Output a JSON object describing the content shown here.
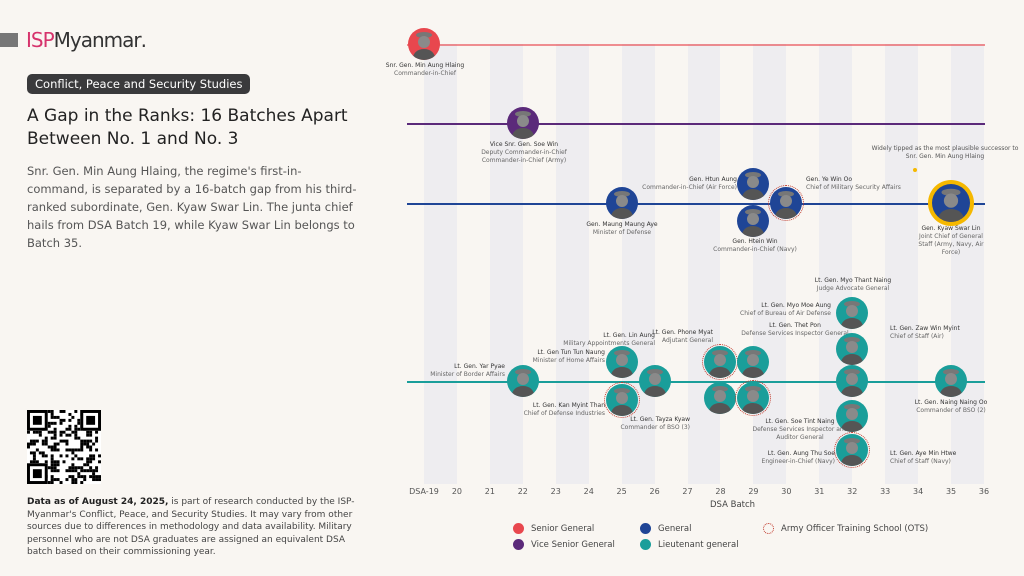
{
  "brand": {
    "isp": "ISP",
    "name": "Myanmar",
    "dot": "."
  },
  "tag": "Conflict, Peace and Security Studies",
  "title": "A Gap in the Ranks: 16 Batches Apart Between No. 1 and No. 3",
  "description": "Snr. Gen. Min Aung Hlaing, the regime's first-in-command, is separated by a 16-batch gap from his third-ranked subordinate, Gen. Kyaw Swar Lin. The junta chief hails from DSA Batch 19, while Kyaw Swar Lin belongs to Batch 35.",
  "note_bold": "Data as of August 24, 2025,",
  "note": " is part of research conducted by the ISP-Myanmar's Conflict, Peace, and Security Studies. It may vary from other sources due to differences in methodology and data availability. Military personnel who are not DSA graduates are assigned an equivalent DSA batch based on their commissioning year.",
  "chart_data": {
    "type": "scatter",
    "xlabel": "DSA Batch",
    "ticks": [
      "DSA-19",
      "20",
      "21",
      "22",
      "23",
      "24",
      "25",
      "26",
      "27",
      "28",
      "29",
      "30",
      "31",
      "32",
      "33",
      "34",
      "35",
      "36"
    ],
    "xlim": [
      19,
      36
    ],
    "ranks": [
      {
        "key": "senior",
        "name": "Senior General",
        "color": "#e8474e"
      },
      {
        "key": "vice",
        "name": "Vice Senior General",
        "color": "#5b2a7a"
      },
      {
        "key": "general",
        "name": "General",
        "color": "#1f4596"
      },
      {
        "key": "lt",
        "name": "Lieutenant general",
        "color": "#1a9e9a"
      }
    ],
    "ots_label": "Army Officer Training School (OTS)",
    "annotation": "Widely tipped as the most plausible successor to Snr. Gen. Min Aung Hlaing",
    "people": [
      {
        "name": "Snr. Gen. Min Aung Hlaing",
        "role": "Commander-in-Chief",
        "rank": "senior",
        "batch": 19,
        "ots": false
      },
      {
        "name": "Vice Snr. Gen. Soe Win",
        "role": "Deputy Commander-in-Chief Commander-in-Chief (Army)",
        "rank": "vice",
        "batch": 22,
        "ots": false
      },
      {
        "name": "Gen. Maung Maung Aye",
        "role": "Minister of Defense",
        "rank": "general",
        "batch": 25,
        "ots": false
      },
      {
        "name": "Gen. Htun Aung",
        "role": "Commander-in-Chief (Air Force)",
        "rank": "general",
        "batch": 29,
        "ots": false
      },
      {
        "name": "Gen. Htein Win",
        "role": "Commander-in-Chief (Navy)",
        "rank": "general",
        "batch": 29,
        "ots": false
      },
      {
        "name": "Gen. Ye Win Oo",
        "role": "Chief of Military Security Affairs",
        "rank": "general",
        "batch": 30,
        "ots": true
      },
      {
        "name": "Gen. Kyaw Swar Lin",
        "role": "Joint Chief of General Staff (Army, Navy, Air Force)",
        "rank": "general",
        "batch": 35,
        "ots": false,
        "highlight": true
      },
      {
        "name": "Lt. Gen. Yar Pyae",
        "role": "Minister of Border Affairs",
        "rank": "lt",
        "batch": 22,
        "ots": false
      },
      {
        "name": "Lt. Gen Tun Tun Naung",
        "role": "Minister of Home Affairs",
        "rank": "lt",
        "batch": 25,
        "ots": false
      },
      {
        "name": "Lt. Gen. Kan Myint Than",
        "role": "Chief of Defense Industries",
        "rank": "lt",
        "batch": 25,
        "ots": true
      },
      {
        "name": "Lt. Gen. Lin Aung",
        "role": "Military Appointments General",
        "rank": "lt",
        "batch": 26,
        "ots": false
      },
      {
        "name": "Lt. Gen. Phone Myat",
        "role": "Adjutant General",
        "rank": "lt",
        "batch": 28,
        "ots": true
      },
      {
        "name": "Lt. Gen. Tayza Kyaw",
        "role": "Commander of BSO (3)",
        "rank": "lt",
        "batch": 28,
        "ots": false
      },
      {
        "name": "Lt. Gen. Thet Pon",
        "role": "Defense Services Inspector General",
        "rank": "lt",
        "batch": 29,
        "ots": false
      },
      {
        "name": "Lt. Gen. Soe Tint Naing",
        "role": "Defense Services Inspector and Auditor General",
        "rank": "lt",
        "batch": 29,
        "ots": true
      },
      {
        "name": "Lt. Gen. Myo Thant Naing",
        "role": "Judge Advocate General",
        "rank": "lt",
        "batch": 32,
        "ots": false
      },
      {
        "name": "Lt. Gen. Myo Moe Aung",
        "role": "Chief of Bureau of Air Defense",
        "rank": "lt",
        "batch": 32,
        "ots": false
      },
      {
        "name": "Lt. Gen. Zaw Win Myint",
        "role": "Chief of Staff (Air)",
        "rank": "lt",
        "batch": 32,
        "ots": false
      },
      {
        "name": "Lt. Gen. Aye Min Htwe",
        "role": "Chief of Staff (Navy)",
        "rank": "lt",
        "batch": 32,
        "ots": false
      },
      {
        "name": "Lt. Gen. Aung Thu Soe",
        "role": "Engineer-in-Chief (Navy)",
        "rank": "lt",
        "batch": 32,
        "ots": true
      },
      {
        "name": "Lt. Gen. Naing Naing Oo",
        "role": "Commander of BSO (2)",
        "rank": "lt",
        "batch": 35,
        "ots": false
      }
    ]
  }
}
